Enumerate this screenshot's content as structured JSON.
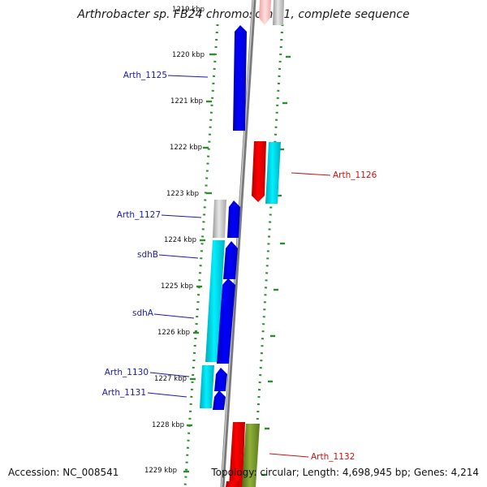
{
  "map": {
    "title": "Arthrobacter sp. FB24 chromosome 1, complete sequence",
    "accession": "Accession: NC_008541",
    "topology": "Topology: circular; Length: 4,698,945 bp; Genes: 4,214",
    "kbp_labels": [
      "1219 kbp",
      "1220 kbp",
      "1221 kbp",
      "1222 kbp",
      "1223 kbp",
      "1224 kbp",
      "1225 kbp",
      "1226 kbp",
      "1227 kbp",
      "1228 kbp",
      "1229 kbp"
    ],
    "colors": {
      "backbone": "#8a8a8a",
      "tick": "#2e8b2e",
      "label_blue": "#1a1aa6",
      "label_red": "#cc1111",
      "gene_blue": "#0000e6",
      "gene_red": "#e60000",
      "gene_cyan": "#00c8d8",
      "gene_gray": "#b8b8b8",
      "gene_olive": "#6b8e23"
    },
    "gene_labels": [
      {
        "text": "Arth_1125",
        "side": "left",
        "color": "blue"
      },
      {
        "text": "Arth_1126",
        "side": "right",
        "color": "red"
      },
      {
        "text": "Arth_1127",
        "side": "left",
        "color": "blue"
      },
      {
        "text": "sdhB",
        "side": "left",
        "color": "blue"
      },
      {
        "text": "sdhA",
        "side": "left",
        "color": "blue"
      },
      {
        "text": "Arth_1130",
        "side": "left",
        "color": "blue"
      },
      {
        "text": "Arth_1131",
        "side": "left",
        "color": "blue"
      },
      {
        "text": "Arth_1132",
        "side": "right",
        "color": "red"
      }
    ]
  }
}
